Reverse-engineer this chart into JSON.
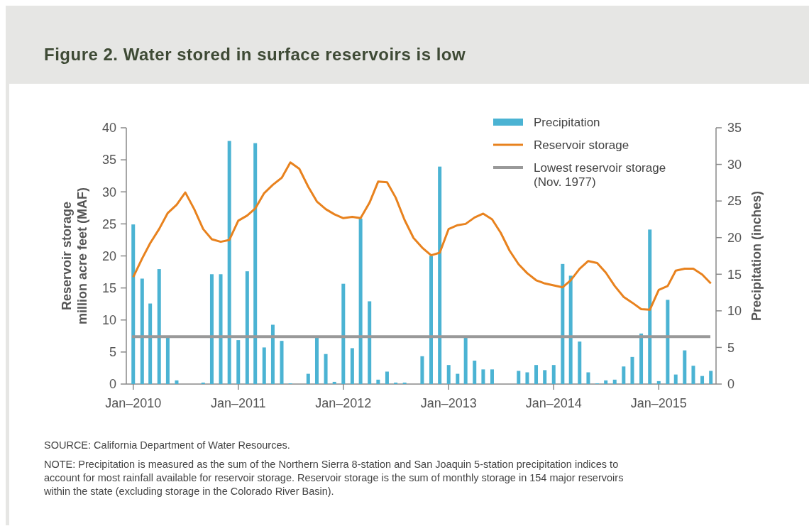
{
  "chart_data": {
    "type": "bar",
    "title": "Figure 2. Water stored in surface reservoirs is low",
    "ylabel": "Reservoir storage\nmillion acre feet (MAF)",
    "y2label": "Precipitation (inches)",
    "x": [
      "2010-01",
      "2010-02",
      "2010-03",
      "2010-04",
      "2010-05",
      "2010-06",
      "2010-07",
      "2010-08",
      "2010-09",
      "2010-10",
      "2010-11",
      "2010-12",
      "2011-01",
      "2011-02",
      "2011-03",
      "2011-04",
      "2011-05",
      "2011-06",
      "2011-07",
      "2011-08",
      "2011-09",
      "2011-10",
      "2011-11",
      "2011-12",
      "2012-01",
      "2012-02",
      "2012-03",
      "2012-04",
      "2012-05",
      "2012-06",
      "2012-07",
      "2012-08",
      "2012-09",
      "2012-10",
      "2012-11",
      "2012-12",
      "2013-01",
      "2013-02",
      "2013-03",
      "2013-04",
      "2013-05",
      "2013-06",
      "2013-07",
      "2013-08",
      "2013-09",
      "2013-10",
      "2013-11",
      "2013-12",
      "2014-01",
      "2014-02",
      "2014-03",
      "2014-04",
      "2014-05",
      "2014-06",
      "2014-07",
      "2014-08",
      "2014-09",
      "2014-10",
      "2014-11",
      "2014-12",
      "2015-01",
      "2015-02",
      "2015-03",
      "2015-04",
      "2015-05",
      "2015-06",
      "2015-07"
    ],
    "series": [
      {
        "name": "Precipitation",
        "axis": "y2",
        "color": "#4bb3d3",
        "values": [
          21.8,
          14.4,
          11.0,
          15.7,
          6.5,
          0.5,
          0,
          0,
          0.2,
          15.0,
          15.0,
          33.2,
          6.0,
          15.4,
          32.9,
          5.0,
          8.1,
          5.9,
          0.1,
          0,
          1.4,
          6.5,
          4.1,
          0.3,
          13.7,
          4.9,
          22.6,
          11.3,
          0.6,
          1.7,
          0.2,
          0.2,
          0,
          3.8,
          17.5,
          29.7,
          2.6,
          1.4,
          6.5,
          3.2,
          2.0,
          2.0,
          0,
          0,
          1.8,
          1.6,
          2.6,
          1.9,
          2.6,
          16.4,
          14.8,
          5.8,
          1.6,
          0.1,
          0.5,
          0.6,
          2.4,
          3.7,
          6.9,
          21.1,
          0.4,
          11.5,
          1.3,
          4.6,
          2.5,
          1.1,
          1.8
        ]
      },
      {
        "name": "Reservoir storage",
        "type": "line",
        "color": "#e8821e",
        "values": [
          16.7,
          19.6,
          22.0,
          24.2,
          26.7,
          28.0,
          29.9,
          27.3,
          24.2,
          22.6,
          22.2,
          22.5,
          25.5,
          26.3,
          27.4,
          29.8,
          31.1,
          32.2,
          34.6,
          33.6,
          30.8,
          28.5,
          27.3,
          26.5,
          25.9,
          26.1,
          25.9,
          28.3,
          31.6,
          31.5,
          29.1,
          25.6,
          22.8,
          21.3,
          20.1,
          20.5,
          24.2,
          24.8,
          25.0,
          26.0,
          26.6,
          25.7,
          23.6,
          20.8,
          18.7,
          17.3,
          16.2,
          15.7,
          15.4,
          15.1,
          16.2,
          18.0,
          19.2,
          18.9,
          17.4,
          15.3,
          13.6,
          12.7,
          11.7,
          11.6,
          14.7,
          15.3,
          17.7,
          18.0,
          18.0,
          17.1,
          15.7
        ]
      }
    ],
    "ref_lines": [
      {
        "axis": "y",
        "value": 7.4,
        "label": "Lowest reservoir storage (Nov. 1977)",
        "color": "#999999"
      }
    ],
    "xlim": [
      "2009-12-08",
      "2015-07-19"
    ],
    "xticks": [
      {
        "value": "2010-01",
        "label": "Jan–2010"
      },
      {
        "value": "2011-01",
        "label": "Jan–2011"
      },
      {
        "value": "2012-01",
        "label": "Jan–2012"
      },
      {
        "value": "2013-01",
        "label": "Jan–2013"
      },
      {
        "value": "2014-01",
        "label": "Jan–2014"
      },
      {
        "value": "2015-01",
        "label": "Jan–2015"
      }
    ],
    "ylim": [
      0,
      40
    ],
    "yticks": [
      0,
      5,
      10,
      15,
      20,
      25,
      30,
      35,
      40
    ],
    "y2lim": [
      0,
      35
    ],
    "y2ticks": [
      0,
      5,
      10,
      15,
      20,
      25,
      30,
      35
    ],
    "legend": "top right",
    "grid": false,
    "annotations": [
      "SOURCE: California Department of Water Resources.",
      "NOTE: Precipitation is measured as the sum of the Northern Sierra 8-station and San Joaquin 5-station precipitation indices to account for most rainfall available for reservoir storage. Reservoir storage is the sum of monthly storage in 154 major reservoirs within the state (excluding storage in the Colorado River Basin)."
    ]
  }
}
